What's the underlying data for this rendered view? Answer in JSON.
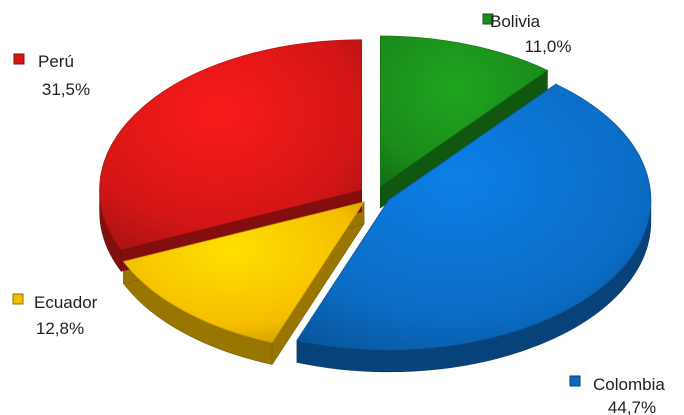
{
  "chart_data": {
    "type": "pie",
    "style": "3d-exploded",
    "legend": "inline labels next to slices",
    "slices": [
      {
        "label": "Bolivia",
        "value": 11.0,
        "value_label": "11,0%",
        "color": "#1a8c1a"
      },
      {
        "label": "Colombia",
        "value": 44.7,
        "value_label": "44,7%",
        "color": "#0b6cc4"
      },
      {
        "label": "Ecuador",
        "value": 12.8,
        "value_label": "12,8%",
        "color": "#f5be00"
      },
      {
        "label": "Perú",
        "value": 31.5,
        "value_label": "31,5%",
        "color": "#d41616"
      }
    ]
  }
}
